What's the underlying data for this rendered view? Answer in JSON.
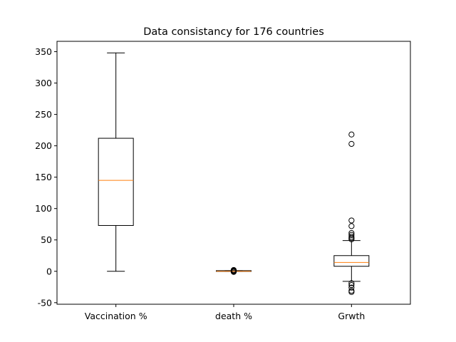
{
  "chart_data": {
    "type": "boxplot",
    "title": "Data consistancy for 176 countries",
    "xlabel": "",
    "ylabel": "",
    "ylim": [
      -52.5,
      366.5
    ],
    "yticks": [
      -50,
      0,
      50,
      100,
      150,
      200,
      250,
      300,
      350
    ],
    "grid": false,
    "categories": [
      "Vaccination %",
      "death %",
      "Grwth"
    ],
    "boxes": [
      {
        "category": "Vaccination %",
        "whisker_low": 0,
        "q1": 73,
        "median": 145,
        "q3": 212,
        "whisker_high": 348,
        "outliers": []
      },
      {
        "category": "death %",
        "whisker_low": 0,
        "q1": 0,
        "median": 0,
        "q3": 1,
        "whisker_high": 1,
        "outliers": [
          2,
          1.5,
          0.5,
          0,
          -0.5,
          -1
        ]
      },
      {
        "category": "Grwth",
        "whisker_low": -16,
        "q1": 8,
        "median": 14,
        "q3": 25,
        "whisker_high": 49,
        "outliers": [
          218,
          203,
          81,
          72,
          61,
          58,
          55,
          53,
          51,
          -19,
          -22,
          -26,
          -31,
          -33
        ]
      }
    ],
    "colors": {
      "box": "#000000",
      "median": "#ff7f0e",
      "outlier": "#000000"
    }
  }
}
